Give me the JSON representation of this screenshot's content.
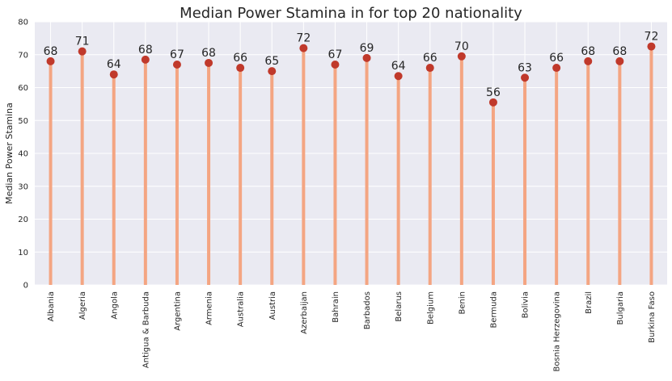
{
  "chart_data": {
    "type": "lollipop",
    "title": "Median Power Stamina in for top 20 nationality",
    "xlabel": "",
    "ylabel": "Median Power Stamina",
    "ylim": [
      0,
      80
    ],
    "yticks": [
      0,
      10,
      20,
      30,
      40,
      50,
      60,
      70,
      80
    ],
    "grid": true,
    "categories": [
      "Albania",
      "Algeria",
      "Angola",
      "Antigua & Barbuda",
      "Argentina",
      "Armenia",
      "Australia",
      "Austria",
      "Azerbaijan",
      "Bahrain",
      "Barbados",
      "Belarus",
      "Belgium",
      "Benin",
      "Bermuda",
      "Bolivia",
      "Bosnia Herzegovina",
      "Brazil",
      "Bulgaria",
      "Burkina Faso"
    ],
    "values": [
      68,
      71,
      64,
      68.5,
      67,
      67.5,
      66,
      65,
      72,
      67,
      69,
      63.5,
      66,
      69.5,
      55.5,
      63,
      66,
      68,
      68,
      72.5
    ],
    "value_labels": [
      "68",
      "71",
      "64",
      "68",
      "67",
      "68",
      "66",
      "65",
      "72",
      "67",
      "69",
      "64",
      "66",
      "70",
      "56",
      "63",
      "66",
      "68",
      "68",
      "72"
    ],
    "colors": {
      "background": "#eaeaf2",
      "stem": "#f4a582",
      "marker": "#c0392b",
      "grid": "#ffffff"
    }
  }
}
